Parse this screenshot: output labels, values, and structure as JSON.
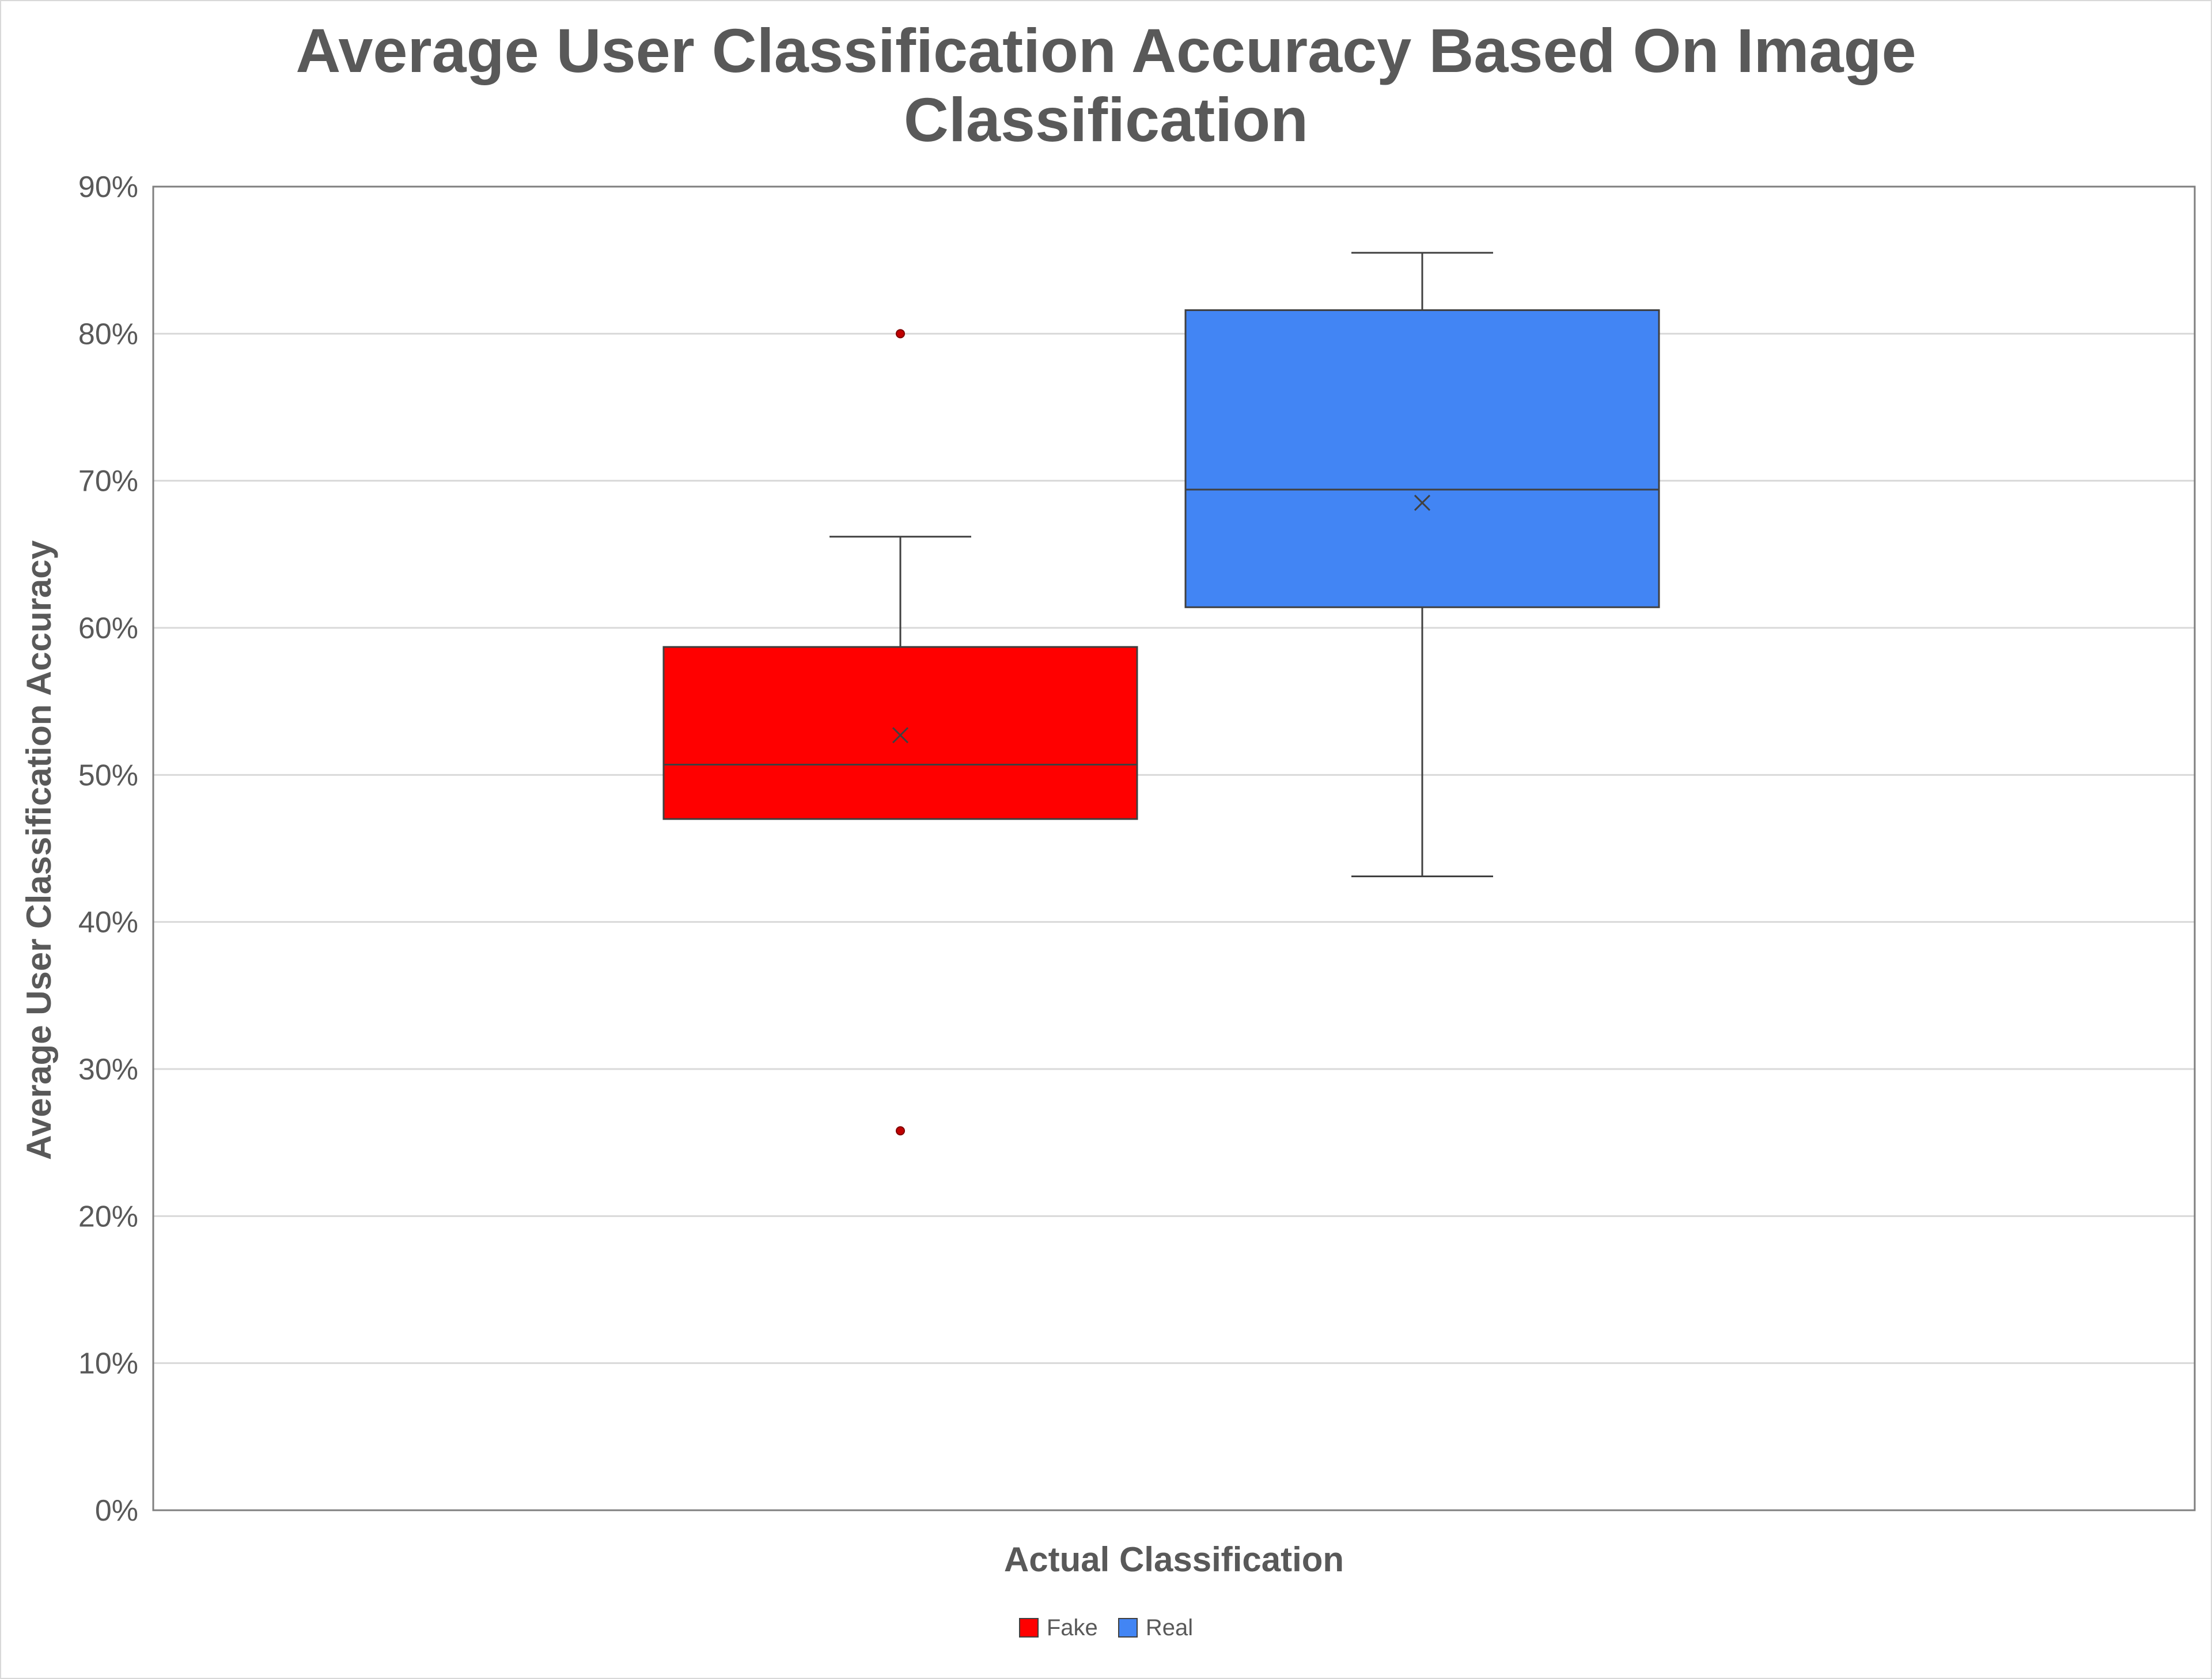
{
  "colors": {
    "fake": "#ff0000",
    "real": "#4285f4",
    "grid": "#d9d9d9",
    "axis": "#7f7f7f",
    "box_line": "#404040",
    "text": "#595959"
  },
  "chart_data": {
    "type": "box",
    "title_lines": [
      "Average User Classification Accuracy Based On Image",
      "Classification"
    ],
    "xlabel": "Actual Classification",
    "ylabel": "Average User Classification Accuracy",
    "ylim": [
      0,
      0.9
    ],
    "yticks": [
      0,
      0.1,
      0.2,
      0.3,
      0.4,
      0.5,
      0.6,
      0.7,
      0.8,
      0.9
    ],
    "ytick_labels": [
      "0%",
      "10%",
      "20%",
      "30%",
      "40%",
      "50%",
      "60%",
      "70%",
      "80%",
      "90%"
    ],
    "grid": true,
    "legend_position": "bottom",
    "series": [
      {
        "name": "Fake",
        "color": "#ff0000",
        "whisker_low": 0.47,
        "q1": 0.47,
        "median": 0.507,
        "q3": 0.587,
        "whisker_high": 0.662,
        "mean": 0.527,
        "outliers": [
          0.8,
          0.258
        ]
      },
      {
        "name": "Real",
        "color": "#4285f4",
        "whisker_low": 0.431,
        "q1": 0.614,
        "median": 0.694,
        "q3": 0.816,
        "whisker_high": 0.855,
        "mean": 0.685,
        "outliers": []
      }
    ]
  },
  "legend": {
    "items": [
      {
        "label": "Fake",
        "color": "#ff0000"
      },
      {
        "label": "Real",
        "color": "#4285f4"
      }
    ]
  }
}
